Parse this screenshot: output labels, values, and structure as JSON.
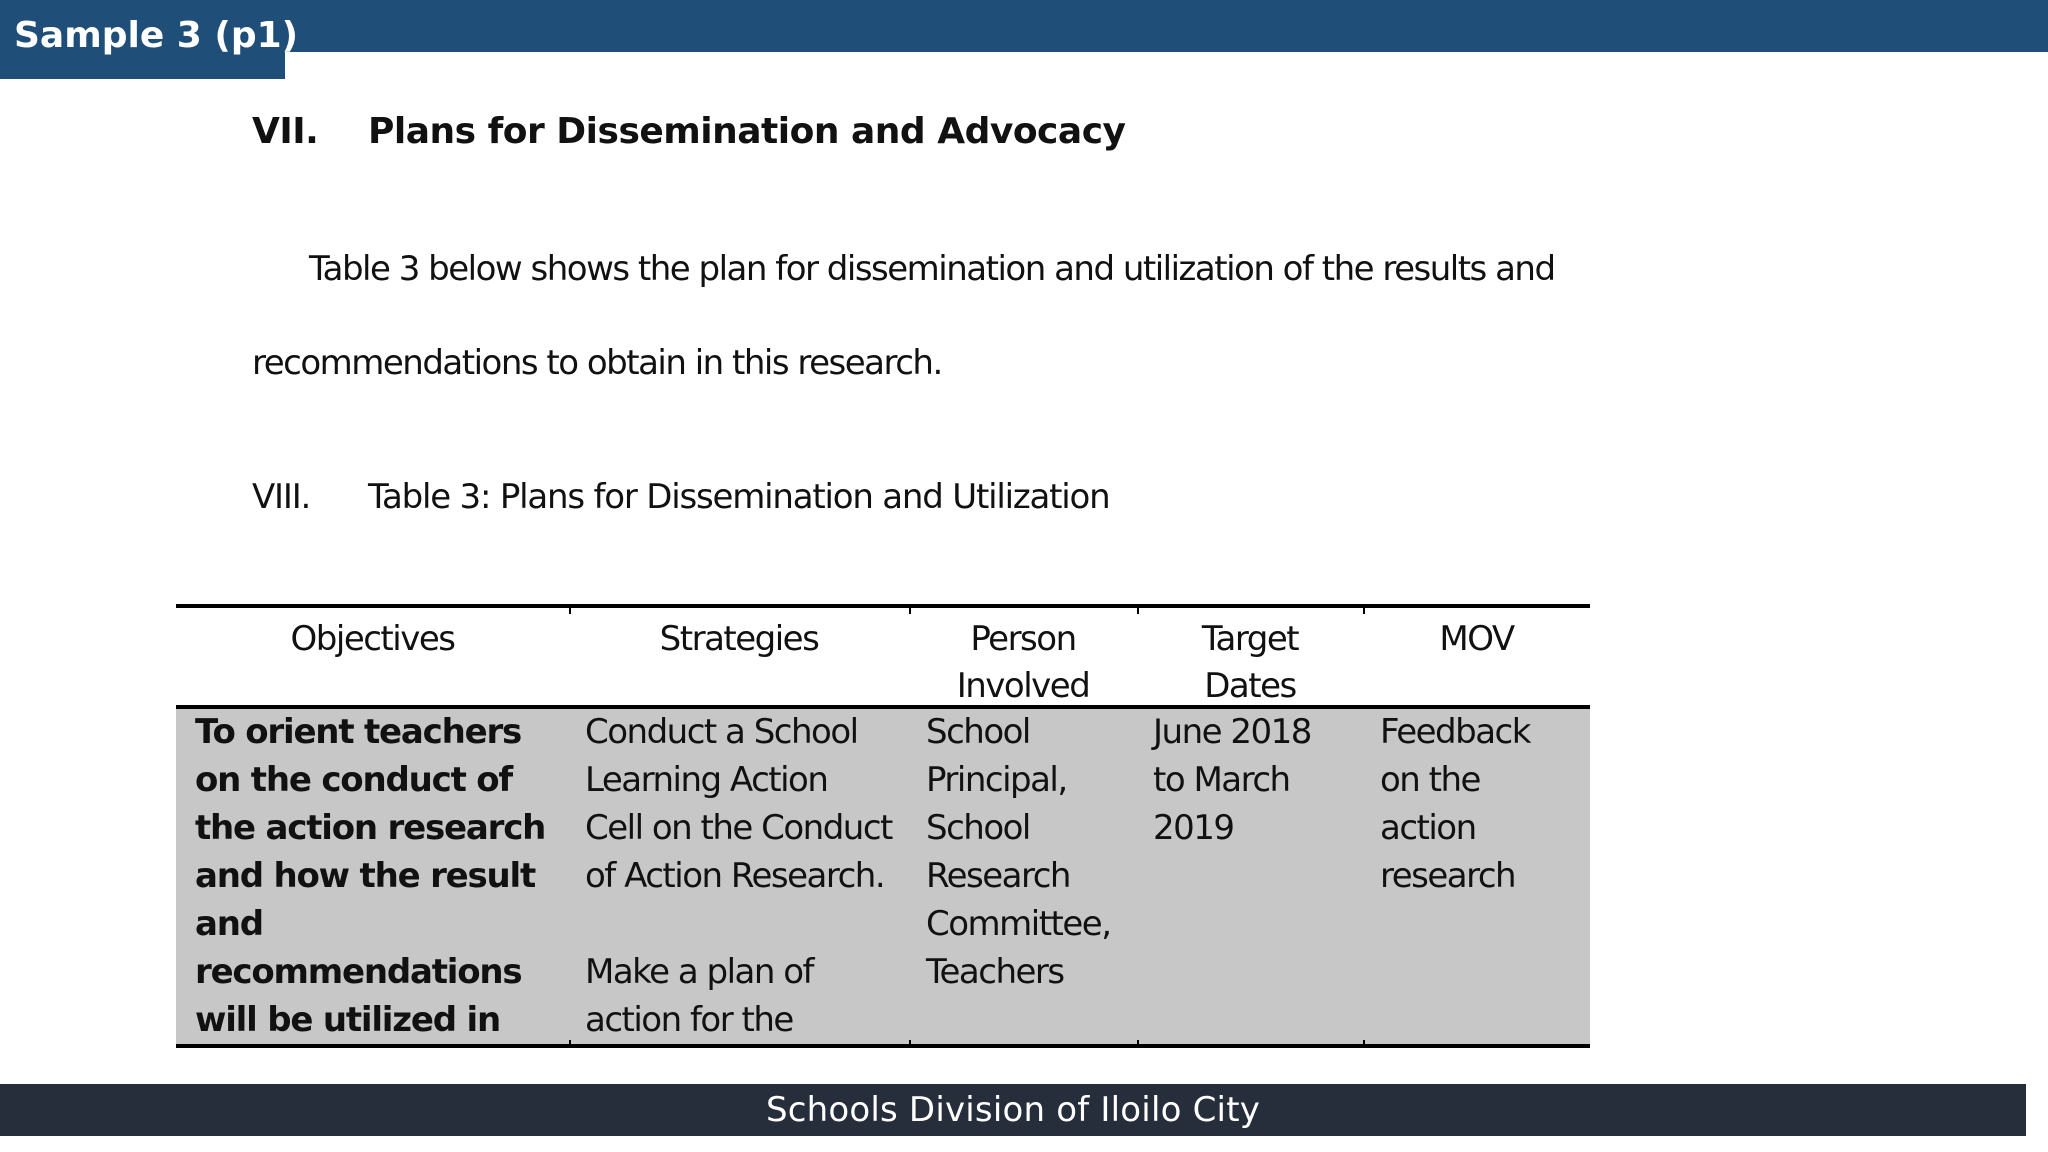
{
  "slide": {
    "label": "Sample 3 (p1)",
    "footer": "Schools Division of Iloilo City",
    "accent_color": "#1f4e79",
    "footer_color": "#262e3c"
  },
  "document": {
    "section_number": "VII.",
    "section_title": "Plans for Dissemination and Advocacy",
    "paragraph_line_1": "Table 3 below shows the plan for dissemination and utilization of the results and",
    "paragraph_line_2": "recommendations to obtain in this research.",
    "table_number": "VIII.",
    "table_title": "Table 3: Plans for Dissemination and Utilization"
  },
  "table": {
    "headers": {
      "objectives": "Objectives",
      "strategies": "Strategies",
      "person": "Person\nInvolved",
      "target": "Target\nDates",
      "mov": "MOV"
    },
    "row": {
      "objectives": "To orient teachers\non the conduct of\nthe action research\nand how the result\nand\nrecommendations\nwill be utilized in",
      "strategies": "Conduct a School\nLearning Action\nCell on the Conduct\nof Action Research.\n\nMake a plan of\naction for the",
      "person": "School\nPrincipal,\nSchool\nResearch\nCommittee,\nTeachers",
      "target": "June 2018\nto March\n2019",
      "mov": "Feedback\non the\naction\nresearch"
    },
    "row_background": "#c8c7c8"
  }
}
